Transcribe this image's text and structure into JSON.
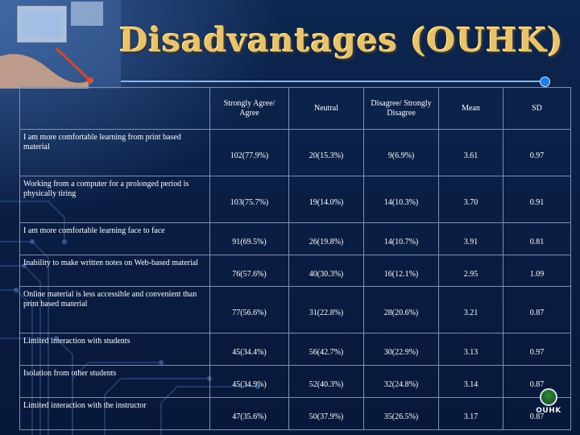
{
  "slide": {
    "title": "Disadvantages (OUHK)",
    "logo_text": "OUHK"
  },
  "table": {
    "headers": [
      "",
      "Strongly Agree/ Agree",
      "Neutral",
      "Disagree/ Strongly Disagree",
      "Mean",
      "SD"
    ],
    "rows": [
      {
        "statement": "I am more comfortable learning from print based material",
        "agree": "102(77.9%)",
        "neutral": "20(15.3%)",
        "disagree": "9(6.9%)",
        "mean": "3.61",
        "sd": "0.97"
      },
      {
        "statement": "Working from a computer for a prolonged period is physically tiring",
        "agree": "103(75.7%)",
        "neutral": "19(14.0%)",
        "disagree": "14(10.3%)",
        "mean": "3.70",
        "sd": "0.91"
      },
      {
        "statement": "I am more comfortable learning face to face",
        "agree": "91(69.5%)",
        "neutral": "26(19.8%)",
        "disagree": "14(10.7%)",
        "mean": "3.91",
        "sd": "0.81"
      },
      {
        "statement": "Inability to make written notes on Web-based material",
        "agree": "76(57.6%)",
        "neutral": "40(30.3%)",
        "disagree": "16(12.1%)",
        "mean": "2.95",
        "sd": "1.09"
      },
      {
        "statement": "Online material is less accessible and convenient than print based material",
        "agree": "77(56.6%)",
        "neutral": "31(22.8%)",
        "disagree": "28(20.6%)",
        "mean": "3.21",
        "sd": "0.87"
      },
      {
        "statement": "Limited interaction with students",
        "agree": "45(34.4%)",
        "neutral": "56(42.7%)",
        "disagree": "30(22.9%)",
        "mean": "3.13",
        "sd": "0.97"
      },
      {
        "statement": "Isolation from other students",
        "agree": "45(34.9%)",
        "neutral": "52(40.3%)",
        "disagree": "32(24.8%)",
        "mean": "3.14",
        "sd": "0.87"
      },
      {
        "statement": "Limited interaction with the instructor",
        "agree": "47(35.6%)",
        "neutral": "50(37.9%)",
        "disagree": "35(26.5%)",
        "mean": "3.17",
        "sd": "0.87"
      }
    ]
  },
  "colors": {
    "title": "#e8c36b",
    "background": "#0a1f45",
    "accent": "#1e7fe8"
  }
}
